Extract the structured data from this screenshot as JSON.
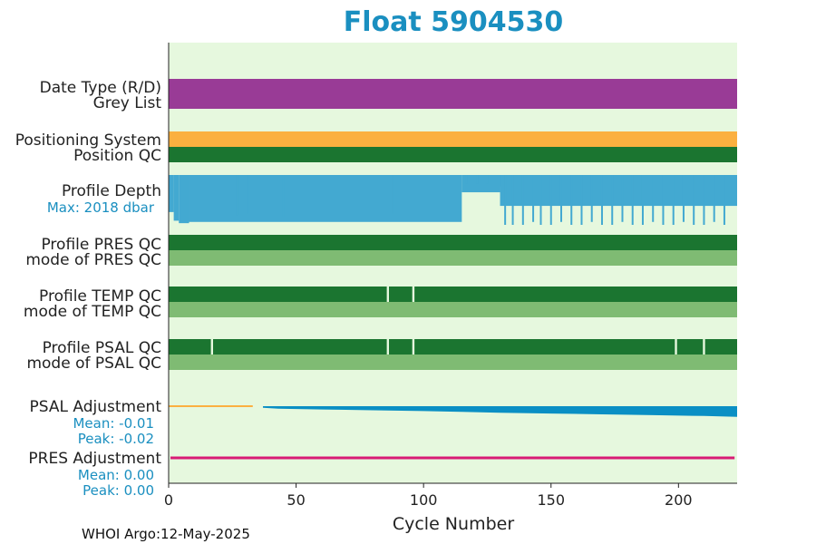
{
  "chart_data": {
    "type": "bar",
    "title": "Float 5904530",
    "xlabel": "Cycle Number",
    "xlim": [
      0,
      223
    ],
    "xticks": [
      0,
      50,
      100,
      150,
      200
    ],
    "grid": false,
    "rows": [
      {
        "key": "date_type",
        "label": "Date Type (R/D)",
        "color": "#993b96"
      },
      {
        "key": "grey_list",
        "label": "Grey List",
        "color": "#993b96"
      },
      {
        "key": "positioning_system",
        "label": "Positioning System",
        "color": "#fbb040"
      },
      {
        "key": "position_qc",
        "label": "Position QC",
        "color": "#1b7530"
      },
      {
        "key": "profile_depth",
        "label": "Profile Depth",
        "sublabel": "Max: 2018 dbar",
        "color": "#43a9d1"
      },
      {
        "key": "profile_pres_qc",
        "label": "Profile PRES QC",
        "color": "#1b7530"
      },
      {
        "key": "mode_pres_qc",
        "label": "mode of PRES QC",
        "color": "#7fbb73"
      },
      {
        "key": "profile_temp_qc",
        "label": "Profile TEMP QC",
        "color": "#1b7530",
        "gaps": [
          86,
          96
        ]
      },
      {
        "key": "mode_temp_qc",
        "label": "mode of TEMP QC",
        "color": "#7fbb73"
      },
      {
        "key": "profile_psal_qc",
        "label": "Profile PSAL QC",
        "color": "#1b7530",
        "gaps": [
          17,
          86,
          96,
          199,
          210
        ]
      },
      {
        "key": "mode_psal_qc",
        "label": "mode of PSAL QC",
        "color": "#7fbb73"
      },
      {
        "key": "psal_adjustment",
        "label": "PSAL Adjustment",
        "mean_label": "Mean: -0.01",
        "peak_label": "Peak: -0.02",
        "color": "#0a8fc4"
      },
      {
        "key": "pres_adjustment",
        "label": "PRES Adjustment",
        "mean_label": "Mean: 0.00",
        "peak_label": "Peak: 0.00",
        "color": "#d81b75"
      }
    ],
    "profile_depth_dbar": {
      "max": 2018,
      "segments": [
        {
          "from": 0,
          "to": 2,
          "depth": 1500
        },
        {
          "from": 2,
          "to": 4,
          "depth": 1850
        },
        {
          "from": 4,
          "to": 8,
          "depth": 1950
        },
        {
          "from": 8,
          "to": 115,
          "depth": 1900
        },
        {
          "from": 115,
          "to": 130,
          "depth": 700
        },
        {
          "from": 130,
          "to": 223,
          "depth": 1250
        }
      ],
      "dips": [
        {
          "cycle": 27,
          "depth": 1650
        },
        {
          "cycle": 31,
          "depth": 1550
        },
        {
          "cycle": 45,
          "depth": 1700
        },
        {
          "cycle": 88,
          "depth": 1550
        },
        {
          "cycle": 117,
          "depth": 350
        },
        {
          "cycle": 121,
          "depth": 350
        },
        {
          "cycle": 125,
          "depth": 350
        },
        {
          "cycle": 130,
          "depth": 450
        },
        {
          "cycle": 132,
          "depth": 2018
        },
        {
          "cycle": 135,
          "depth": 2018
        },
        {
          "cycle": 139,
          "depth": 2018
        },
        {
          "cycle": 143,
          "depth": 1900
        },
        {
          "cycle": 146,
          "depth": 2018
        },
        {
          "cycle": 150,
          "depth": 2018
        },
        {
          "cycle": 154,
          "depth": 1900
        },
        {
          "cycle": 158,
          "depth": 2018
        },
        {
          "cycle": 162,
          "depth": 2018
        },
        {
          "cycle": 166,
          "depth": 1900
        },
        {
          "cycle": 170,
          "depth": 2018
        },
        {
          "cycle": 174,
          "depth": 2018
        },
        {
          "cycle": 178,
          "depth": 1900
        },
        {
          "cycle": 182,
          "depth": 2018
        },
        {
          "cycle": 186,
          "depth": 2018
        },
        {
          "cycle": 190,
          "depth": 1900
        },
        {
          "cycle": 194,
          "depth": 2018
        },
        {
          "cycle": 198,
          "depth": 2018
        },
        {
          "cycle": 202,
          "depth": 1900
        },
        {
          "cycle": 206,
          "depth": 2018
        },
        {
          "cycle": 210,
          "depth": 2018
        },
        {
          "cycle": 214,
          "depth": 1900
        },
        {
          "cycle": 218,
          "depth": 2018
        }
      ]
    },
    "psal_adjustment_values": {
      "cycles": [
        0,
        33,
        37,
        43,
        60,
        80,
        100,
        115,
        130,
        150,
        170,
        190,
        210,
        223
      ],
      "values": [
        -0.001,
        -0.001,
        -0.002,
        -0.003,
        -0.004,
        -0.005,
        -0.006,
        -0.007,
        -0.008,
        -0.009,
        -0.01,
        -0.011,
        -0.012,
        -0.013
      ],
      "peak": -0.02
    },
    "pres_adjustment_values": {
      "cycles": [
        0,
        222
      ],
      "values": [
        0.0,
        0.0
      ]
    }
  },
  "footer": "WHOI Argo:12-May-2025"
}
